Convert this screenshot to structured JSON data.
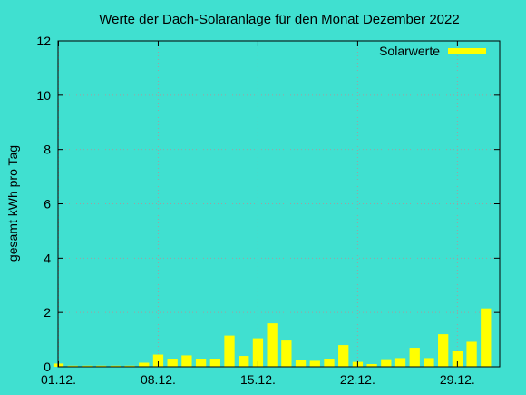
{
  "colors": {
    "background": "#40e0d0",
    "bar": "#ffff00",
    "grid": "#a0a0a0",
    "axis": "#000000"
  },
  "chart_data": {
    "type": "bar",
    "title": "Werte der Dach-Solaranlage für den Monat Dezember 2022",
    "xlabel": "",
    "ylabel": "gesamt kWh pro Tag",
    "ylim": [
      0,
      12
    ],
    "yticks": [
      0,
      2,
      4,
      6,
      8,
      10,
      12
    ],
    "xtick_labels": [
      "01.12.",
      "08.12.",
      "15.12.",
      "22.12.",
      "29.12."
    ],
    "grid": true,
    "legend_position": "top-right",
    "series": [
      {
        "name": "Solarwerte",
        "categories": [
          "01.12.",
          "02.12.",
          "03.12.",
          "04.12.",
          "05.12.",
          "06.12.",
          "07.12.",
          "08.12.",
          "09.12.",
          "10.12.",
          "11.12.",
          "12.12.",
          "13.12.",
          "14.12.",
          "15.12.",
          "16.12.",
          "17.12.",
          "18.12.",
          "19.12.",
          "20.12.",
          "21.12.",
          "22.12.",
          "23.12.",
          "24.12.",
          "25.12.",
          "26.12.",
          "27.12.",
          "28.12.",
          "29.12.",
          "30.12.",
          "31.12."
        ],
        "values": [
          0.12,
          0.04,
          0.04,
          0.04,
          0.04,
          0.04,
          0.15,
          0.45,
          0.3,
          0.42,
          0.3,
          0.3,
          1.15,
          0.4,
          1.05,
          1.6,
          1.0,
          0.25,
          0.22,
          0.3,
          0.8,
          0.18,
          0.1,
          0.28,
          0.32,
          0.7,
          0.32,
          1.2,
          0.6,
          0.92,
          2.15
        ]
      }
    ]
  }
}
